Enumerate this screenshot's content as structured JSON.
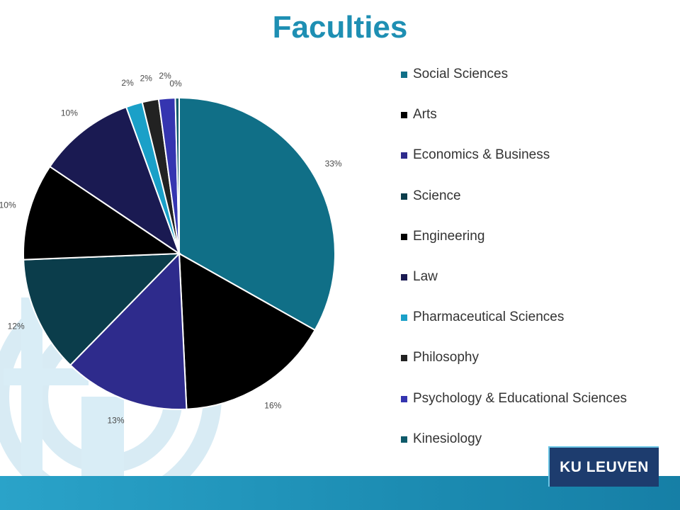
{
  "slide": {
    "logo_text": "KU LEUVEN"
  },
  "chart_data": {
    "type": "pie",
    "title": "Faculties",
    "legend_position": "right",
    "slices": [
      {
        "name": "Social Sciences",
        "value": 33,
        "label": "33%",
        "color": "#106f87"
      },
      {
        "name": "Arts",
        "value": 16,
        "label": "16%",
        "color": "#000000"
      },
      {
        "name": "Economics & Business",
        "value": 13,
        "label": "13%",
        "color": "#2e2b8c"
      },
      {
        "name": "Science",
        "value": 12,
        "label": "12%",
        "color": "#0b3d4b"
      },
      {
        "name": "Engineering",
        "value": 10,
        "label": "10%",
        "color": "#000000"
      },
      {
        "name": "Law",
        "value": 10,
        "label": "10%",
        "color": "#1a1a52"
      },
      {
        "name": "Pharmaceutical Sciences",
        "value": 1.7,
        "label": "2%",
        "color": "#1aa0c8"
      },
      {
        "name": "Philosophy",
        "value": 1.7,
        "label": "2%",
        "color": "#222222"
      },
      {
        "name": "Psychology & Educational Sciences",
        "value": 1.7,
        "label": "2%",
        "color": "#3535b0"
      },
      {
        "name": "Kinesiology",
        "value": 0.4,
        "label": "0%",
        "color": "#0e5a6a"
      }
    ]
  }
}
